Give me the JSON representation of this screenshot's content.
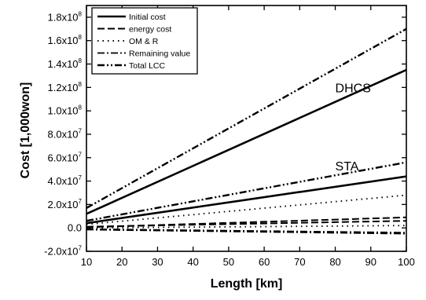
{
  "chart_data": {
    "type": "line",
    "xlabel": "Length [km]",
    "ylabel": "Cost [1,000won]",
    "xlim": [
      10,
      100
    ],
    "ylim": [
      -20000000,
      190000000
    ],
    "x_ticks": [
      10,
      20,
      30,
      40,
      50,
      60,
      70,
      80,
      90,
      100
    ],
    "y_ticks": [
      {
        "value": -20000000,
        "mant": "-2.0x10",
        "exp": "7"
      },
      {
        "value": 0,
        "mant": "0.0",
        "exp": ""
      },
      {
        "value": 20000000,
        "mant": "2.0x10",
        "exp": "7"
      },
      {
        "value": 40000000,
        "mant": "4.0x10",
        "exp": "7"
      },
      {
        "value": 60000000,
        "mant": "6.0x10",
        "exp": "7"
      },
      {
        "value": 80000000,
        "mant": "8.0x10",
        "exp": "7"
      },
      {
        "value": 100000000,
        "mant": "1.0x10",
        "exp": "8"
      },
      {
        "value": 120000000,
        "mant": "1.2x10",
        "exp": "8"
      },
      {
        "value": 140000000,
        "mant": "1.4x10",
        "exp": "8"
      },
      {
        "value": 160000000,
        "mant": "1.6x10",
        "exp": "8"
      },
      {
        "value": 180000000,
        "mant": "1.8x10",
        "exp": "8"
      }
    ],
    "grid": false,
    "legend_position": "top-left",
    "legend": [
      {
        "label": "Initial cost",
        "style": "solid"
      },
      {
        "label": "energy cost",
        "style": "dash"
      },
      {
        "label": "OM & R",
        "style": "dot"
      },
      {
        "label": "Remaining value",
        "style": "dashdot"
      },
      {
        "label": "Total LCC",
        "style": "dashdotdot"
      }
    ],
    "annotations": [
      {
        "text": "DHCS",
        "x": 80,
        "y": 116000000
      },
      {
        "text": "STA",
        "x": 80,
        "y": 49000000
      }
    ],
    "series": [
      {
        "group": "DHCS",
        "style": "solid",
        "x": [
          10,
          100
        ],
        "y": [
          12000000,
          135000000
        ]
      },
      {
        "group": "DHCS",
        "style": "dashdotdot",
        "x": [
          10,
          100
        ],
        "y": [
          17000000,
          170000000
        ]
      },
      {
        "group": "STA",
        "style": "solid",
        "x": [
          10,
          100
        ],
        "y": [
          4000000,
          44000000
        ]
      },
      {
        "group": "STA",
        "style": "dashdotdot",
        "x": [
          10,
          100
        ],
        "y": [
          6000000,
          56000000
        ]
      },
      {
        "group": "STA",
        "style": "dot",
        "x": [
          10,
          100
        ],
        "y": [
          3000000,
          28000000
        ]
      },
      {
        "group": "STA",
        "style": "dash",
        "x": [
          10,
          100
        ],
        "y": [
          500000,
          9000000
        ]
      },
      {
        "group": "DHCS",
        "style": "dash",
        "x": [
          10,
          100
        ],
        "y": [
          1000000,
          6000000
        ]
      },
      {
        "group": "DHCS",
        "style": "dot",
        "x": [
          10,
          100
        ],
        "y": [
          0,
          2000000
        ]
      },
      {
        "group": "STA",
        "style": "dashdot",
        "x": [
          10,
          100
        ],
        "y": [
          -1000000,
          -4000000
        ]
      },
      {
        "group": "DHCS",
        "style": "dashdot",
        "x": [
          10,
          100
        ],
        "y": [
          -1500000,
          -5000000
        ]
      }
    ]
  }
}
